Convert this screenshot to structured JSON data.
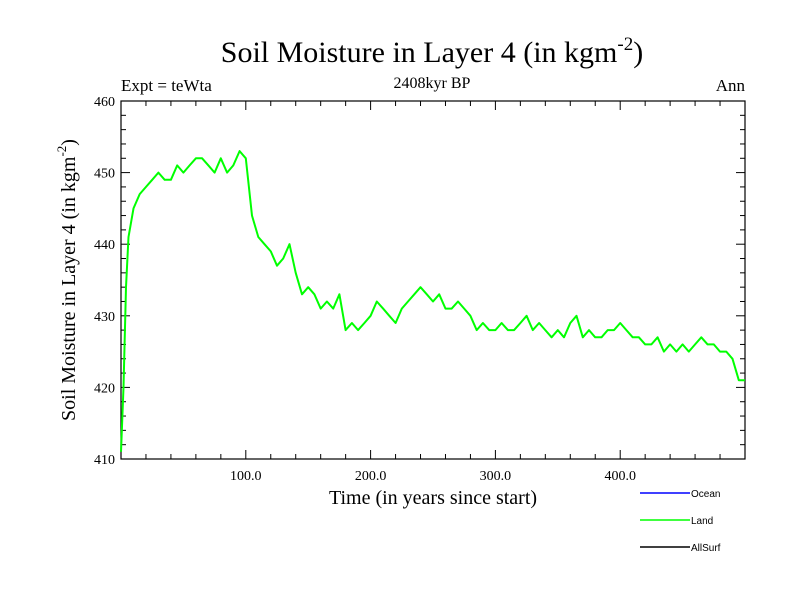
{
  "chart_data": {
    "type": "line",
    "title": "Soil Moisture in Layer 4 (in kgm",
    "title_sup": "-2",
    "title_close": ")",
    "subtitle": "2408kyr BP",
    "left_label": "Expt = teWta",
    "right_label": "Ann",
    "xlabel": "Time (in years since start)",
    "ylabel": "Soil Moisture in Layer 4 (in kgm",
    "ylabel_sup": "-2",
    "ylabel_close": ")",
    "xlim": [
      0,
      500
    ],
    "ylim": [
      410,
      460
    ],
    "x_ticks": [
      {
        "value": 100,
        "label": "100.0"
      },
      {
        "value": 200,
        "label": "200.0"
      },
      {
        "value": 300,
        "label": "300.0"
      },
      {
        "value": 400,
        "label": "400.0"
      }
    ],
    "y_ticks": [
      {
        "value": 410,
        "label": "410"
      },
      {
        "value": 420,
        "label": "420"
      },
      {
        "value": 430,
        "label": "430"
      },
      {
        "value": 440,
        "label": "440"
      },
      {
        "value": 450,
        "label": "450"
      },
      {
        "value": 460,
        "label": "460"
      }
    ],
    "series": [
      {
        "name": "Land",
        "color": "#00ff00",
        "x": [
          0,
          2,
          4,
          6,
          10,
          15,
          20,
          25,
          30,
          35,
          40,
          45,
          50,
          55,
          60,
          65,
          70,
          75,
          80,
          85,
          90,
          95,
          100,
          105,
          110,
          115,
          120,
          125,
          130,
          135,
          140,
          145,
          150,
          155,
          160,
          165,
          170,
          175,
          180,
          185,
          190,
          195,
          200,
          205,
          210,
          215,
          220,
          225,
          230,
          235,
          240,
          245,
          250,
          255,
          260,
          265,
          270,
          275,
          280,
          285,
          290,
          295,
          300,
          305,
          310,
          315,
          320,
          325,
          330,
          335,
          340,
          345,
          350,
          355,
          360,
          365,
          370,
          375,
          380,
          385,
          390,
          395,
          400,
          405,
          410,
          415,
          420,
          425,
          430,
          435,
          440,
          445,
          450,
          455,
          460,
          465,
          470,
          475,
          480,
          485,
          490,
          495,
          500
        ],
        "values": [
          411,
          420,
          434,
          441,
          445,
          447,
          448,
          449,
          450,
          449,
          449,
          451,
          450,
          451,
          452,
          452,
          451,
          450,
          452,
          450,
          451,
          453,
          452,
          444,
          441,
          440,
          439,
          437,
          438,
          440,
          436,
          433,
          434,
          433,
          431,
          432,
          431,
          433,
          428,
          429,
          428,
          429,
          430,
          432,
          431,
          430,
          429,
          431,
          432,
          433,
          434,
          433,
          432,
          433,
          431,
          431,
          432,
          431,
          430,
          428,
          429,
          428,
          428,
          429,
          428,
          428,
          429,
          430,
          428,
          429,
          428,
          427,
          428,
          427,
          429,
          430,
          427,
          428,
          427,
          427,
          428,
          428,
          429,
          428,
          427,
          427,
          426,
          426,
          427,
          425,
          426,
          425,
          426,
          425,
          426,
          427,
          426,
          426,
          425,
          425,
          424,
          421,
          421
        ]
      },
      {
        "name": "Ocean",
        "color": "#0000ff",
        "x": [],
        "values": []
      },
      {
        "name": "AllSurf",
        "color": "#000000",
        "x": [],
        "values": []
      }
    ],
    "legend": {
      "position": "bottom-right",
      "entries": [
        {
          "label": "Ocean",
          "color": "#0000ff"
        },
        {
          "label": "Land",
          "color": "#00ff00"
        },
        {
          "label": "AllSurf",
          "color": "#000000"
        }
      ]
    }
  }
}
